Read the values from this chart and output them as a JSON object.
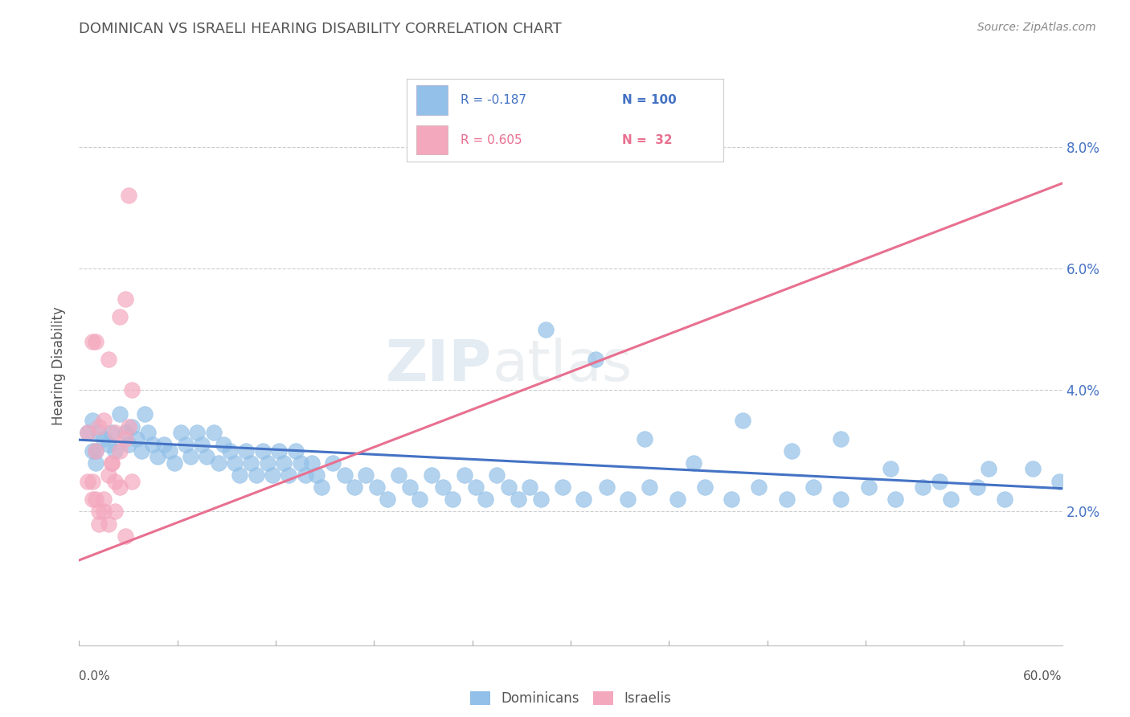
{
  "title": "DOMINICAN VS ISRAELI HEARING DISABILITY CORRELATION CHART",
  "source": "Source: ZipAtlas.com",
  "ylabel": "Hearing Disability",
  "watermark_zip": "ZIP",
  "watermark_atlas": "atlas",
  "legend_line1_r": "R = -0.187",
  "legend_line1_n": "N = 100",
  "legend_line2_r": "R = 0.605",
  "legend_line2_n": "N =  32",
  "legend_label_blue": "Dominicans",
  "legend_label_pink": "Israelis",
  "xlim": [
    0.0,
    0.6
  ],
  "ylim": [
    -0.002,
    0.09
  ],
  "yticks": [
    0.02,
    0.04,
    0.06,
    0.08
  ],
  "ytick_labels": [
    "2.0%",
    "4.0%",
    "6.0%",
    "8.0%"
  ],
  "blue_color": "#92C0E8",
  "pink_color": "#F4A8BE",
  "blue_line_color": "#4472C4",
  "pink_line_color": "#E87090",
  "title_color": "#555555",
  "source_color": "#888888",
  "axis_label_color": "#4472C4",
  "grid_color": "#CCCCCC",
  "background_color": "#FFFFFF",
  "blue_dots_x": [
    0.005,
    0.008,
    0.01,
    0.012,
    0.015,
    0.018,
    0.02,
    0.022,
    0.008,
    0.01,
    0.025,
    0.028,
    0.03,
    0.032,
    0.035,
    0.038,
    0.04,
    0.042,
    0.045,
    0.048,
    0.052,
    0.055,
    0.058,
    0.062,
    0.065,
    0.068,
    0.072,
    0.075,
    0.078,
    0.082,
    0.085,
    0.088,
    0.092,
    0.095,
    0.098,
    0.102,
    0.105,
    0.108,
    0.112,
    0.115,
    0.118,
    0.122,
    0.125,
    0.128,
    0.132,
    0.135,
    0.138,
    0.142,
    0.145,
    0.148,
    0.155,
    0.162,
    0.168,
    0.175,
    0.182,
    0.188,
    0.195,
    0.202,
    0.208,
    0.215,
    0.222,
    0.228,
    0.235,
    0.242,
    0.248,
    0.255,
    0.262,
    0.268,
    0.275,
    0.282,
    0.295,
    0.308,
    0.322,
    0.335,
    0.348,
    0.365,
    0.382,
    0.398,
    0.415,
    0.432,
    0.448,
    0.465,
    0.482,
    0.498,
    0.515,
    0.532,
    0.548,
    0.565,
    0.582,
    0.598,
    0.285,
    0.315,
    0.345,
    0.375,
    0.405,
    0.435,
    0.465,
    0.495,
    0.525,
    0.555
  ],
  "blue_dots_y": [
    0.033,
    0.035,
    0.03,
    0.033,
    0.032,
    0.031,
    0.033,
    0.03,
    0.03,
    0.028,
    0.036,
    0.033,
    0.031,
    0.034,
    0.032,
    0.03,
    0.036,
    0.033,
    0.031,
    0.029,
    0.031,
    0.03,
    0.028,
    0.033,
    0.031,
    0.029,
    0.033,
    0.031,
    0.029,
    0.033,
    0.028,
    0.031,
    0.03,
    0.028,
    0.026,
    0.03,
    0.028,
    0.026,
    0.03,
    0.028,
    0.026,
    0.03,
    0.028,
    0.026,
    0.03,
    0.028,
    0.026,
    0.028,
    0.026,
    0.024,
    0.028,
    0.026,
    0.024,
    0.026,
    0.024,
    0.022,
    0.026,
    0.024,
    0.022,
    0.026,
    0.024,
    0.022,
    0.026,
    0.024,
    0.022,
    0.026,
    0.024,
    0.022,
    0.024,
    0.022,
    0.024,
    0.022,
    0.024,
    0.022,
    0.024,
    0.022,
    0.024,
    0.022,
    0.024,
    0.022,
    0.024,
    0.022,
    0.024,
    0.022,
    0.024,
    0.022,
    0.024,
    0.022,
    0.027,
    0.025,
    0.05,
    0.045,
    0.032,
    0.028,
    0.035,
    0.03,
    0.032,
    0.027,
    0.025,
    0.027
  ],
  "pink_dots_x": [
    0.005,
    0.008,
    0.01,
    0.012,
    0.015,
    0.018,
    0.02,
    0.022,
    0.025,
    0.028,
    0.03,
    0.032,
    0.005,
    0.008,
    0.01,
    0.012,
    0.015,
    0.018,
    0.02,
    0.022,
    0.025,
    0.028,
    0.03,
    0.008,
    0.01,
    0.015,
    0.018,
    0.022,
    0.025,
    0.032,
    0.012,
    0.028
  ],
  "pink_dots_y": [
    0.033,
    0.048,
    0.03,
    0.034,
    0.035,
    0.045,
    0.028,
    0.033,
    0.03,
    0.032,
    0.034,
    0.04,
    0.025,
    0.022,
    0.048,
    0.02,
    0.022,
    0.026,
    0.028,
    0.025,
    0.052,
    0.055,
    0.072,
    0.025,
    0.022,
    0.02,
    0.018,
    0.02,
    0.024,
    0.025,
    0.018,
    0.016
  ],
  "blue_trend_x": [
    0.0,
    0.6
  ],
  "blue_trend_y": [
    0.0318,
    0.0238
  ],
  "pink_trend_x": [
    0.0,
    0.6
  ],
  "pink_trend_y": [
    0.012,
    0.074
  ]
}
